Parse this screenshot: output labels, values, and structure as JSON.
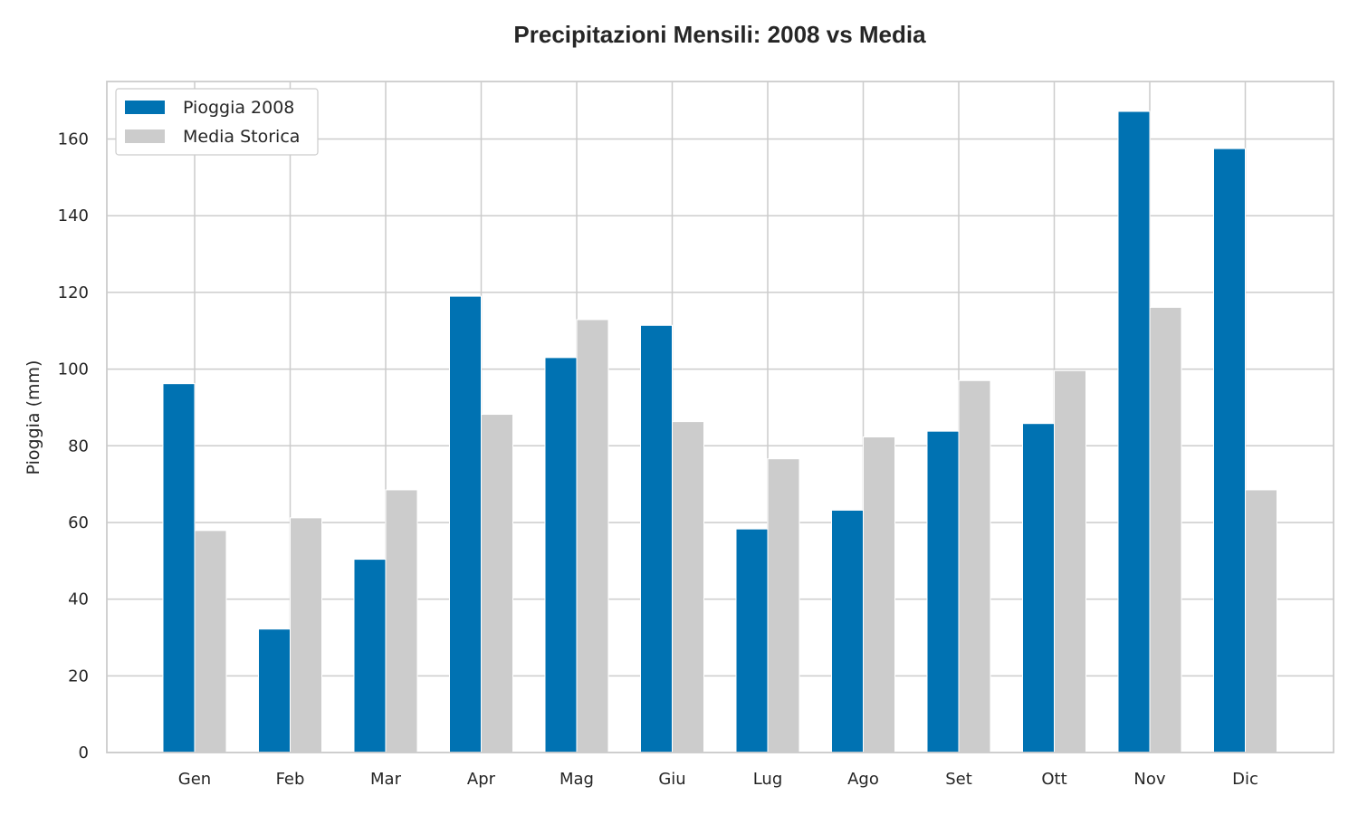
{
  "chart_data": {
    "type": "bar",
    "title": "Precipitazioni Mensili: 2008 vs Media",
    "xlabel": "",
    "ylabel": "Pioggia (mm)",
    "ylim": [
      0,
      175
    ],
    "yticks": [
      0,
      20,
      40,
      60,
      80,
      100,
      120,
      140,
      160
    ],
    "grid": true,
    "legend_position": "top-left",
    "categories": [
      "Gen",
      "Feb",
      "Mar",
      "Apr",
      "Mag",
      "Giu",
      "Lug",
      "Ago",
      "Set",
      "Ott",
      "Nov",
      "Dic"
    ],
    "series": [
      {
        "name": "Pioggia 2008",
        "color": "#0072b2",
        "values": [
          96.2,
          32.2,
          50.4,
          119.0,
          103.0,
          111.4,
          58.3,
          63.2,
          83.8,
          85.8,
          167.2,
          157.5
        ]
      },
      {
        "name": "Media Storica",
        "color": "#cccccc",
        "values": [
          57.9,
          61.2,
          68.5,
          88.2,
          112.9,
          86.3,
          76.6,
          82.3,
          97.0,
          99.6,
          116.1,
          68.5
        ]
      }
    ]
  }
}
